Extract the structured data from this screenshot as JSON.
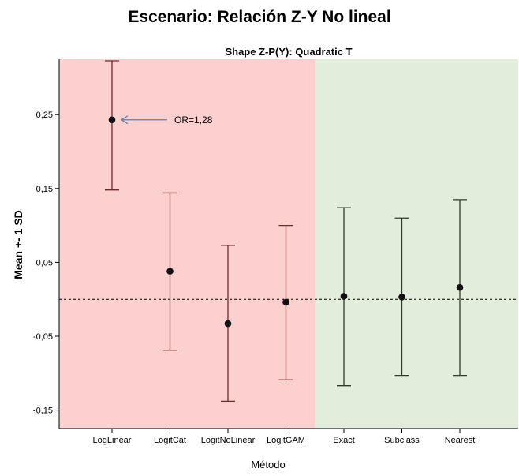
{
  "page": {
    "title": "Escenario: Relación Z-Y No lineal"
  },
  "chart_data": {
    "type": "scatter",
    "subtitle": "Shape Z-P(Y): Quadratic T",
    "xlabel": "Método",
    "ylabel": "Mean +- 1 SD",
    "categories": [
      "LogLinear",
      "LogitCat",
      "LogitNoLinear",
      "LogitGAM",
      "Exact",
      "Subclass",
      "Nearest"
    ],
    "means": [
      0.243,
      0.038,
      -0.033,
      -0.004,
      0.004,
      0.003,
      0.016
    ],
    "lower": [
      0.148,
      -0.069,
      -0.138,
      -0.109,
      -0.117,
      -0.103,
      -0.103
    ],
    "upper": [
      0.325,
      0.144,
      0.073,
      0.1,
      0.124,
      0.11,
      0.135
    ],
    "ylim": [
      -0.175,
      0.325
    ],
    "yticks": [
      0.25,
      0.15,
      0.05,
      -0.05,
      -0.15
    ],
    "ytick_labels": [
      "0,25",
      "0,15",
      "0,05",
      "-0,05",
      "-0,15"
    ],
    "reference_line": 0.0,
    "annotation": {
      "text": "OR=1,28",
      "category": "LogLinear"
    },
    "regions": [
      {
        "from": "LogLinear",
        "to": "LogitGAM",
        "color": "#fdd0d0",
        "series_color": "#6b2c2c"
      },
      {
        "from": "Exact",
        "to": "Nearest",
        "color": "#e3eddc",
        "series_color": "#2f3b2c"
      }
    ],
    "annotation_color": "#4f81bd",
    "grid": false
  }
}
